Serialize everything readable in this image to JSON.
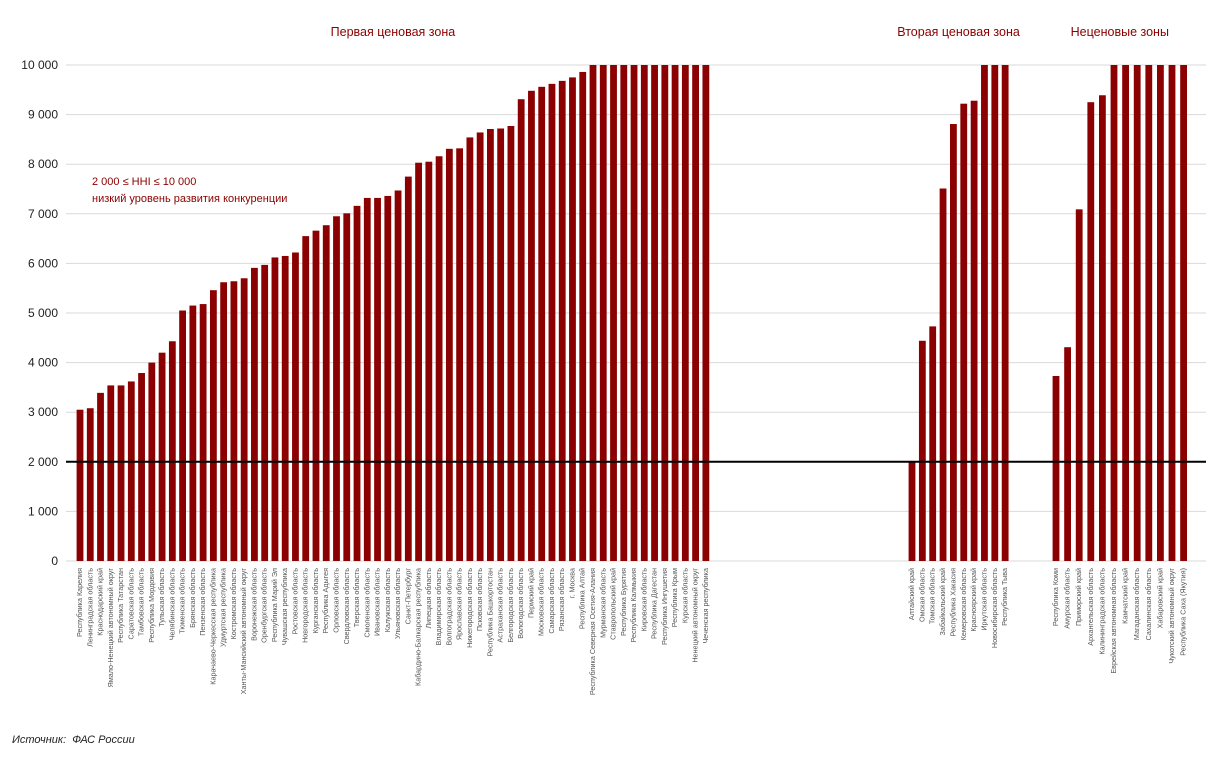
{
  "chart_data": {
    "type": "bar",
    "yticks": [
      "0",
      "1 000",
      "2 000",
      "3 000",
      "4 000",
      "5 000",
      "6 000",
      "7 000",
      "8 000",
      "9 000",
      "10 000"
    ],
    "ylim": [
      0,
      10000
    ],
    "grid": true,
    "threshold": 2000,
    "annotation": {
      "line1": "2 000 ≤ HHI ≤ 10 000",
      "line2": "низкий уровень развития конкуренции"
    },
    "groups": [
      {
        "title": "Первая ценовая зона",
        "categories": [
          "Республика Карелия",
          "Ленинградская область",
          "Краснодарский край",
          "Ямало-Ненецкий автономный округ",
          "Республика Татарстан",
          "Саратовская область",
          "Тамбовская область",
          "Республика Мордовия",
          "Тульская область",
          "Челябинская область",
          "Тюменская область",
          "Брянская область",
          "Пензенская область",
          "Карачаево-Черкесская республика",
          "Удмуртская республика",
          "Костромская область",
          "Ханты-Мансийский автономный округ",
          "Воронежская область",
          "Оренбургская область",
          "Республика Марий Эл",
          "Чувашская республика",
          "Ростовская область",
          "Новгородская область",
          "Курганская область",
          "Республика Адыгея",
          "Орловская область",
          "Свердловская область",
          "Тверская область",
          "Смоленская область",
          "Ивановская область",
          "Калужская область",
          "Ульяновская область",
          "Санкт-Петербург",
          "Кабардино-Балкарская республика",
          "Липецкая область",
          "Владимирская область",
          "Волгоградская область",
          "Ярославская область",
          "Нижегородская область",
          "Псковская область",
          "Республика Башкортостан",
          "Астраханская область",
          "Белгородская область",
          "Вологодская область",
          "Пермский край",
          "Московская область",
          "Самарская область",
          "Рязанская область",
          "г. Москва",
          "Республика Алтай",
          "Республика Северная Осетия-Алания",
          "Мурманская область",
          "Ставропольский край",
          "Республика Бурятия",
          "Республика Калмыкия",
          "Кировская область",
          "Республика Дагестан",
          "Республика Ингушетия",
          "Республика Крым",
          "Курская область",
          "Ненецкий автономный округ",
          "Чеченская республика"
        ],
        "values": [
          3050,
          3080,
          3390,
          3540,
          3540,
          3620,
          3790,
          4000,
          4200,
          4430,
          5050,
          5150,
          5180,
          5460,
          5620,
          5640,
          5700,
          5910,
          5970,
          6120,
          6150,
          6220,
          6550,
          6660,
          6770,
          6950,
          7010,
          7160,
          7320,
          7320,
          7360,
          7470,
          7750,
          8030,
          8050,
          8160,
          8310,
          8320,
          8540,
          8640,
          8710,
          8720,
          8770,
          9310,
          9480,
          9560,
          9620,
          9680,
          9750,
          9860,
          10000,
          10000,
          10000,
          10000,
          10000,
          10000,
          10000,
          10000,
          10000,
          10000,
          10000,
          10000
        ]
      },
      {
        "title": "Вторая ценовая зона",
        "categories": [
          "Алтайский край",
          "Омская область",
          "Томская область",
          "Забайкальский край",
          "Республика Хакасия",
          "Кемеровская область",
          "Красноярский край",
          "Иркутская область",
          "Новосибирская область",
          "Республика Тыва"
        ],
        "values": [
          2000,
          4440,
          4730,
          7510,
          8810,
          9220,
          9280,
          10000,
          10000,
          10000
        ]
      },
      {
        "title": "Неценовые зоны",
        "categories": [
          "Республика Коми",
          "Амурская область",
          "Приморский край",
          "Архангельская область",
          "Калининградская область",
          "Еврейская автономная область",
          "Камчатский край",
          "Магаданская область",
          "Сахалинская область",
          "Хабаровский край",
          "Чукотский автономный округ",
          "Республика Саха (Якутия)"
        ],
        "values": [
          3730,
          4310,
          7090,
          9250,
          9390,
          10000,
          10000,
          10000,
          10000,
          10000,
          10000,
          10000
        ]
      }
    ]
  },
  "source": {
    "label": "Источник:",
    "value": "ФАС России"
  },
  "colors": {
    "bar": "#8b0000",
    "zone_title": "#8b0000",
    "threshold_line": "#000000",
    "grid": "#d9d9d9"
  }
}
